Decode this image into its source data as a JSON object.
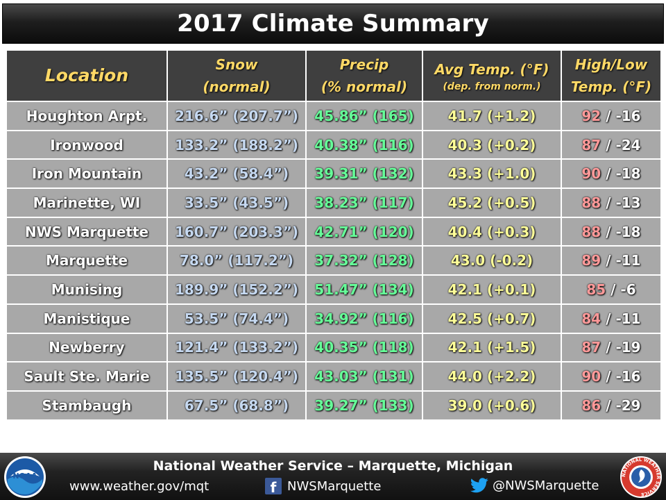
{
  "title": "2017 Climate Summary",
  "headers": {
    "location": "Location",
    "snow_line1": "Snow",
    "snow_line2": "(normal)",
    "precip_line1": "Precip",
    "precip_line2": "(% normal)",
    "temp_line1": "Avg Temp. (°F)",
    "temp_line2": "(dep. from norm.)",
    "hl_line1": "High/Low",
    "hl_line2": "Temp. (°F)"
  },
  "rows": [
    {
      "location": "Houghton Arpt.",
      "snow": "216.6” (207.7”)",
      "precip": "45.86”  (165)",
      "temp": "41.7 (+1.2)",
      "high": "92",
      "low": " / -16"
    },
    {
      "location": "Ironwood",
      "snow": "133.2” (188.2”)",
      "precip": "40.38”  (116)",
      "temp": "40.3 (+0.2)",
      "high": "87",
      "low": " / -24"
    },
    {
      "location": "Iron Mountain",
      "snow": "43.2” (58.4”)",
      "precip": "39.31”  (132)",
      "temp": "43.3 (+1.0)",
      "high": "90",
      "low": " / -18"
    },
    {
      "location": "Marinette, WI",
      "snow": "33.5” (43.5”)",
      "precip": "38.23”  (117)",
      "temp": "45.2 (+0.5)",
      "high": "88",
      "low": " / -13"
    },
    {
      "location": "NWS Marquette",
      "snow": "160.7” (203.3”)",
      "precip": "42.71”  (120)",
      "temp": "40.4 (+0.3)",
      "high": "88",
      "low": " / -18"
    },
    {
      "location": "Marquette",
      "snow": "78.0” (117.2”)",
      "precip": "37.32”  (128)",
      "temp": "43.0 (-0.2)",
      "high": "89",
      "low": " / -11"
    },
    {
      "location": "Munising",
      "snow": "189.9” (152.2”)",
      "precip": "51.47”  (134)",
      "temp": "42.1 (+0.1)",
      "high": "85",
      "low": " / -6"
    },
    {
      "location": "Manistique",
      "snow": "53.5” (74.4”)",
      "precip": "34.92”  (116)",
      "temp": "42.5 (+0.7)",
      "high": "84",
      "low": " / -11"
    },
    {
      "location": "Newberry",
      "snow": "121.4” (133.2”)",
      "precip": "40.35”  (118)",
      "temp": "42.1 (+1.5)",
      "high": "87",
      "low": " / -19"
    },
    {
      "location": "Sault Ste. Marie",
      "snow": "135.5” (120.4”)",
      "precip": "43.03”  (131)",
      "temp": "44.0 (+2.2)",
      "high": "90",
      "low": " / -16"
    },
    {
      "location": "Stambaugh",
      "snow": "67.5” (68.8”)",
      "precip": "39.27”  (133)",
      "temp": "39.0 (+0.6)",
      "high": "86",
      "low": " / -29"
    }
  ],
  "footer": {
    "org": "National Weather Service – Marquette, Michigan",
    "website": "www.weather.gov/mqt",
    "facebook": "NWSMarquette",
    "twitter": "@NWSMarquette",
    "facebook_icon": "facebook-icon",
    "twitter_icon": "twitter-icon",
    "logo_left": "noaa-logo",
    "logo_left_text": "NOAA",
    "logo_right": "nws-logo",
    "logo_right_text": "NATIONAL WEATHER SERVICE"
  },
  "colors": {
    "header_bg": "#3f3f3f",
    "cell_bg": "#a8a8a8",
    "header_text": "#ffd966",
    "snow_text": "#c6d9f1",
    "precip_text": "#66ff99",
    "temp_text": "#ffff99",
    "high_text": "#ff9999"
  }
}
